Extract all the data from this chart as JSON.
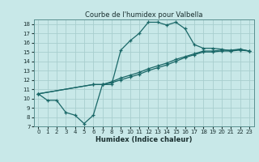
{
  "title": "Courbe de l'humidex pour Valbella",
  "xlabel": "Humidex (Indice chaleur)",
  "bg_color": "#c8e8e8",
  "grid_color": "#a8cece",
  "line_color": "#1a6868",
  "series": [
    {
      "x": [
        0,
        1,
        2,
        3,
        4,
        5,
        6,
        7,
        8,
        9,
        10,
        11,
        12,
        13,
        14,
        15,
        16,
        17,
        18,
        19,
        20,
        21,
        22,
        23
      ],
      "y": [
        10.5,
        9.8,
        9.8,
        8.5,
        8.2,
        7.3,
        8.2,
        11.5,
        11.5,
        15.2,
        16.2,
        17.0,
        18.2,
        18.2,
        17.9,
        18.2,
        17.5,
        15.8,
        15.4,
        15.4,
        15.3,
        15.1,
        15.3,
        15.1
      ]
    },
    {
      "x": [
        0,
        6,
        7,
        8,
        9,
        10,
        11,
        12,
        13,
        14,
        15,
        16,
        17,
        18,
        19,
        20,
        21,
        22,
        23
      ],
      "y": [
        10.5,
        11.5,
        11.5,
        11.8,
        12.2,
        12.5,
        12.8,
        13.2,
        13.5,
        13.8,
        14.2,
        14.5,
        14.8,
        15.1,
        15.1,
        15.2,
        15.2,
        15.3,
        15.1
      ]
    },
    {
      "x": [
        0,
        6,
        7,
        8,
        9,
        10,
        11,
        12,
        13,
        14,
        15,
        16,
        17,
        18,
        19,
        20,
        21,
        22,
        23
      ],
      "y": [
        10.5,
        11.5,
        11.5,
        11.7,
        12.0,
        12.3,
        12.6,
        13.0,
        13.3,
        13.6,
        14.0,
        14.4,
        14.7,
        15.0,
        15.0,
        15.1,
        15.1,
        15.2,
        15.1
      ]
    }
  ],
  "xlim": [
    -0.5,
    23.5
  ],
  "ylim": [
    7,
    18.5
  ],
  "yticks": [
    7,
    8,
    9,
    10,
    11,
    12,
    13,
    14,
    15,
    16,
    17,
    18
  ],
  "xticks": [
    0,
    1,
    2,
    3,
    4,
    5,
    6,
    7,
    8,
    9,
    10,
    11,
    12,
    13,
    14,
    15,
    16,
    17,
    18,
    19,
    20,
    21,
    22,
    23
  ],
  "title_fontsize": 6,
  "tick_fontsize": 5,
  "xlabel_fontsize": 6
}
